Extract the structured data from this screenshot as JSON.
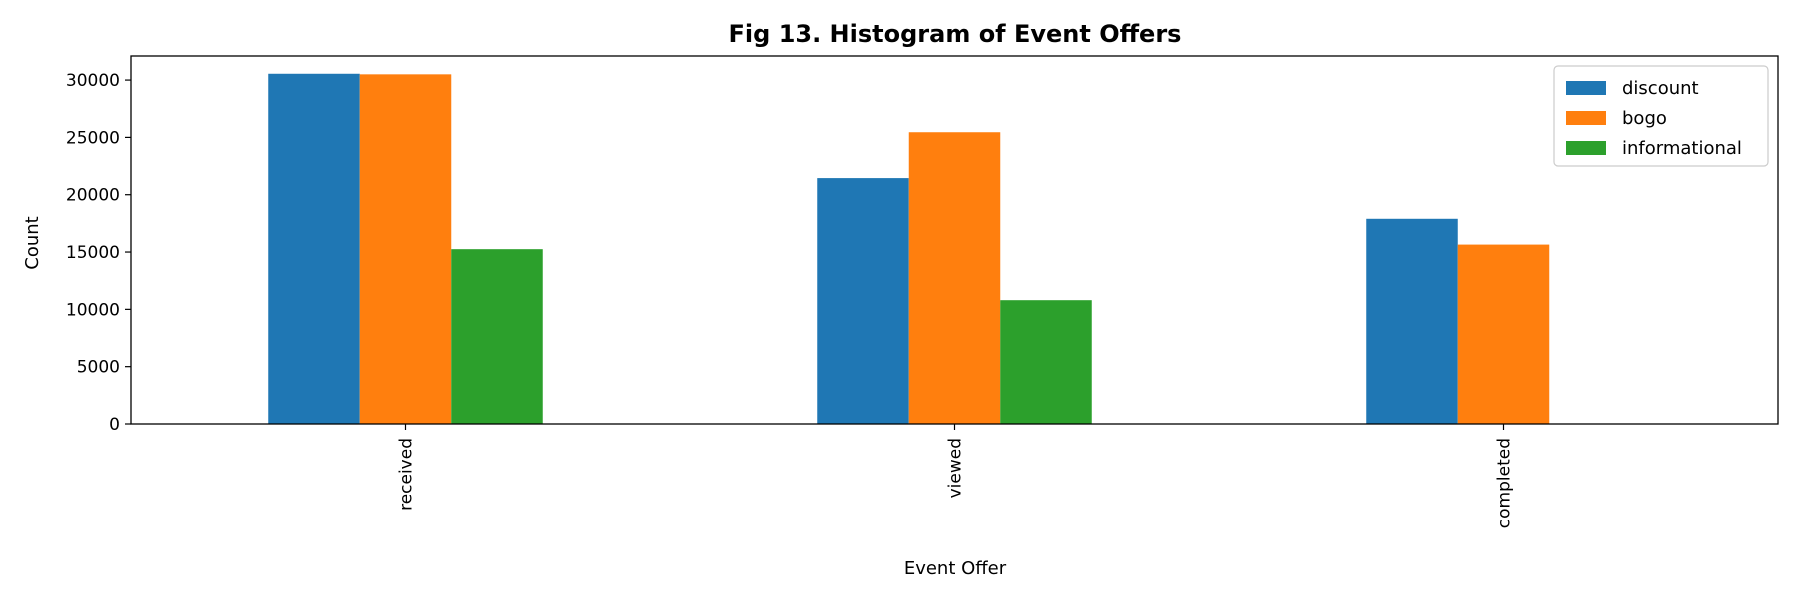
{
  "chart_data": {
    "type": "bar",
    "title": "Fig 13. Histogram of Event Offers",
    "xlabel": "Event Offer",
    "ylabel": "Count",
    "categories": [
      "received",
      "viewed",
      "completed"
    ],
    "series": [
      {
        "name": "discount",
        "color": "#1f77b4",
        "values": [
          30550,
          21450,
          17900
        ]
      },
      {
        "name": "bogo",
        "color": "#ff7f0e",
        "values": [
          30500,
          25450,
          15650
        ]
      },
      {
        "name": "informational",
        "color": "#2ca02c",
        "values": [
          15250,
          10800,
          0
        ]
      }
    ],
    "ylim": [
      0,
      32100
    ],
    "yticks": [
      0,
      5000,
      10000,
      15000,
      20000,
      25000,
      30000
    ],
    "legend_position": "top-right",
    "grid": false
  }
}
